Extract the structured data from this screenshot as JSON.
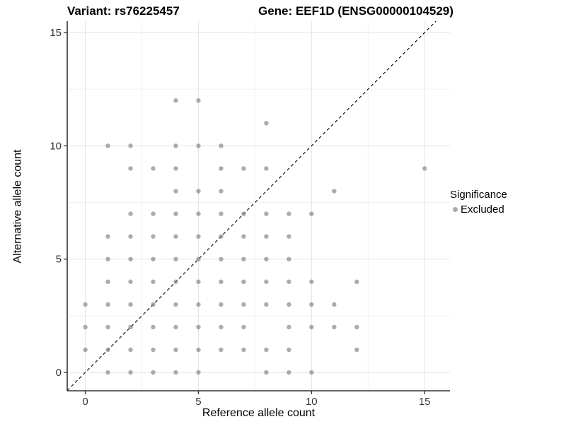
{
  "chart_data": {
    "type": "scatter",
    "titles": {
      "left": "Variant: rs76225457",
      "right": "Gene: EEF1D (ENSG00000104529)"
    },
    "xlabel": "Reference allele count",
    "ylabel": "Alternative allele count",
    "xlim": [
      -0.8,
      16.12
    ],
    "ylim": [
      -0.81,
      15.5
    ],
    "x_ticks": [
      0,
      5,
      10,
      15
    ],
    "y_ticks": [
      0,
      5,
      10,
      15
    ],
    "x_minor_ticks": [
      2.5,
      7.5,
      12.5
    ],
    "y_minor_ticks": [
      2.5,
      7.5,
      12.5
    ],
    "grid": true,
    "identity_line": {
      "equation": "y = x",
      "style": "dashed",
      "color": "#000000"
    },
    "legend": {
      "title": "Significance",
      "position": "right",
      "items": [
        {
          "label": "Excluded",
          "color": "#ababab",
          "marker": "circle"
        }
      ]
    },
    "series": [
      {
        "name": "Excluded",
        "color": "#808080",
        "opacity": 0.65,
        "points": [
          [
            1,
            0
          ],
          [
            2,
            0
          ],
          [
            3,
            0
          ],
          [
            4,
            0
          ],
          [
            5,
            0
          ],
          [
            8,
            0
          ],
          [
            9,
            0
          ],
          [
            10,
            0
          ],
          [
            0,
            1
          ],
          [
            1,
            1
          ],
          [
            2,
            1
          ],
          [
            3,
            1
          ],
          [
            4,
            1
          ],
          [
            5,
            1
          ],
          [
            6,
            1
          ],
          [
            7,
            1
          ],
          [
            8,
            1
          ],
          [
            9,
            1
          ],
          [
            12,
            1
          ],
          [
            0,
            2
          ],
          [
            1,
            2
          ],
          [
            2,
            2
          ],
          [
            3,
            2
          ],
          [
            4,
            2
          ],
          [
            5,
            2
          ],
          [
            6,
            2
          ],
          [
            7,
            2
          ],
          [
            9,
            2
          ],
          [
            10,
            2
          ],
          [
            11,
            2
          ],
          [
            12,
            2
          ],
          [
            0,
            3
          ],
          [
            1,
            3
          ],
          [
            2,
            3
          ],
          [
            3,
            3
          ],
          [
            4,
            3
          ],
          [
            5,
            3
          ],
          [
            6,
            3
          ],
          [
            7,
            3
          ],
          [
            8,
            3
          ],
          [
            9,
            3
          ],
          [
            10,
            3
          ],
          [
            11,
            3
          ],
          [
            1,
            4
          ],
          [
            2,
            4
          ],
          [
            3,
            4
          ],
          [
            4,
            4
          ],
          [
            5,
            4
          ],
          [
            6,
            4
          ],
          [
            7,
            4
          ],
          [
            8,
            4
          ],
          [
            9,
            4
          ],
          [
            10,
            4
          ],
          [
            12,
            4
          ],
          [
            1,
            5
          ],
          [
            2,
            5
          ],
          [
            3,
            5
          ],
          [
            4,
            5
          ],
          [
            5,
            5
          ],
          [
            6,
            5
          ],
          [
            7,
            5
          ],
          [
            8,
            5
          ],
          [
            9,
            5
          ],
          [
            1,
            6
          ],
          [
            2,
            6
          ],
          [
            3,
            6
          ],
          [
            4,
            6
          ],
          [
            5,
            6
          ],
          [
            6,
            6
          ],
          [
            7,
            6
          ],
          [
            8,
            6
          ],
          [
            9,
            6
          ],
          [
            2,
            7
          ],
          [
            3,
            7
          ],
          [
            4,
            7
          ],
          [
            5,
            7
          ],
          [
            6,
            7
          ],
          [
            7,
            7
          ],
          [
            8,
            7
          ],
          [
            9,
            7
          ],
          [
            10,
            7
          ],
          [
            4,
            8
          ],
          [
            5,
            8
          ],
          [
            6,
            8
          ],
          [
            11,
            8
          ],
          [
            2,
            9
          ],
          [
            3,
            9
          ],
          [
            4,
            9
          ],
          [
            6,
            9
          ],
          [
            7,
            9
          ],
          [
            8,
            9
          ],
          [
            15,
            9
          ],
          [
            1,
            10
          ],
          [
            2,
            10
          ],
          [
            4,
            10
          ],
          [
            5,
            10
          ],
          [
            6,
            10
          ],
          [
            8,
            11
          ],
          [
            4,
            12
          ],
          [
            5,
            12
          ]
        ]
      }
    ],
    "style": {
      "major_grid_color": "#e3e3e3",
      "minor_grid_color": "#f0f0f0",
      "axis_line_color": "#333333",
      "tick_label_color": "#333333",
      "point_radius_px": 3.2
    }
  }
}
